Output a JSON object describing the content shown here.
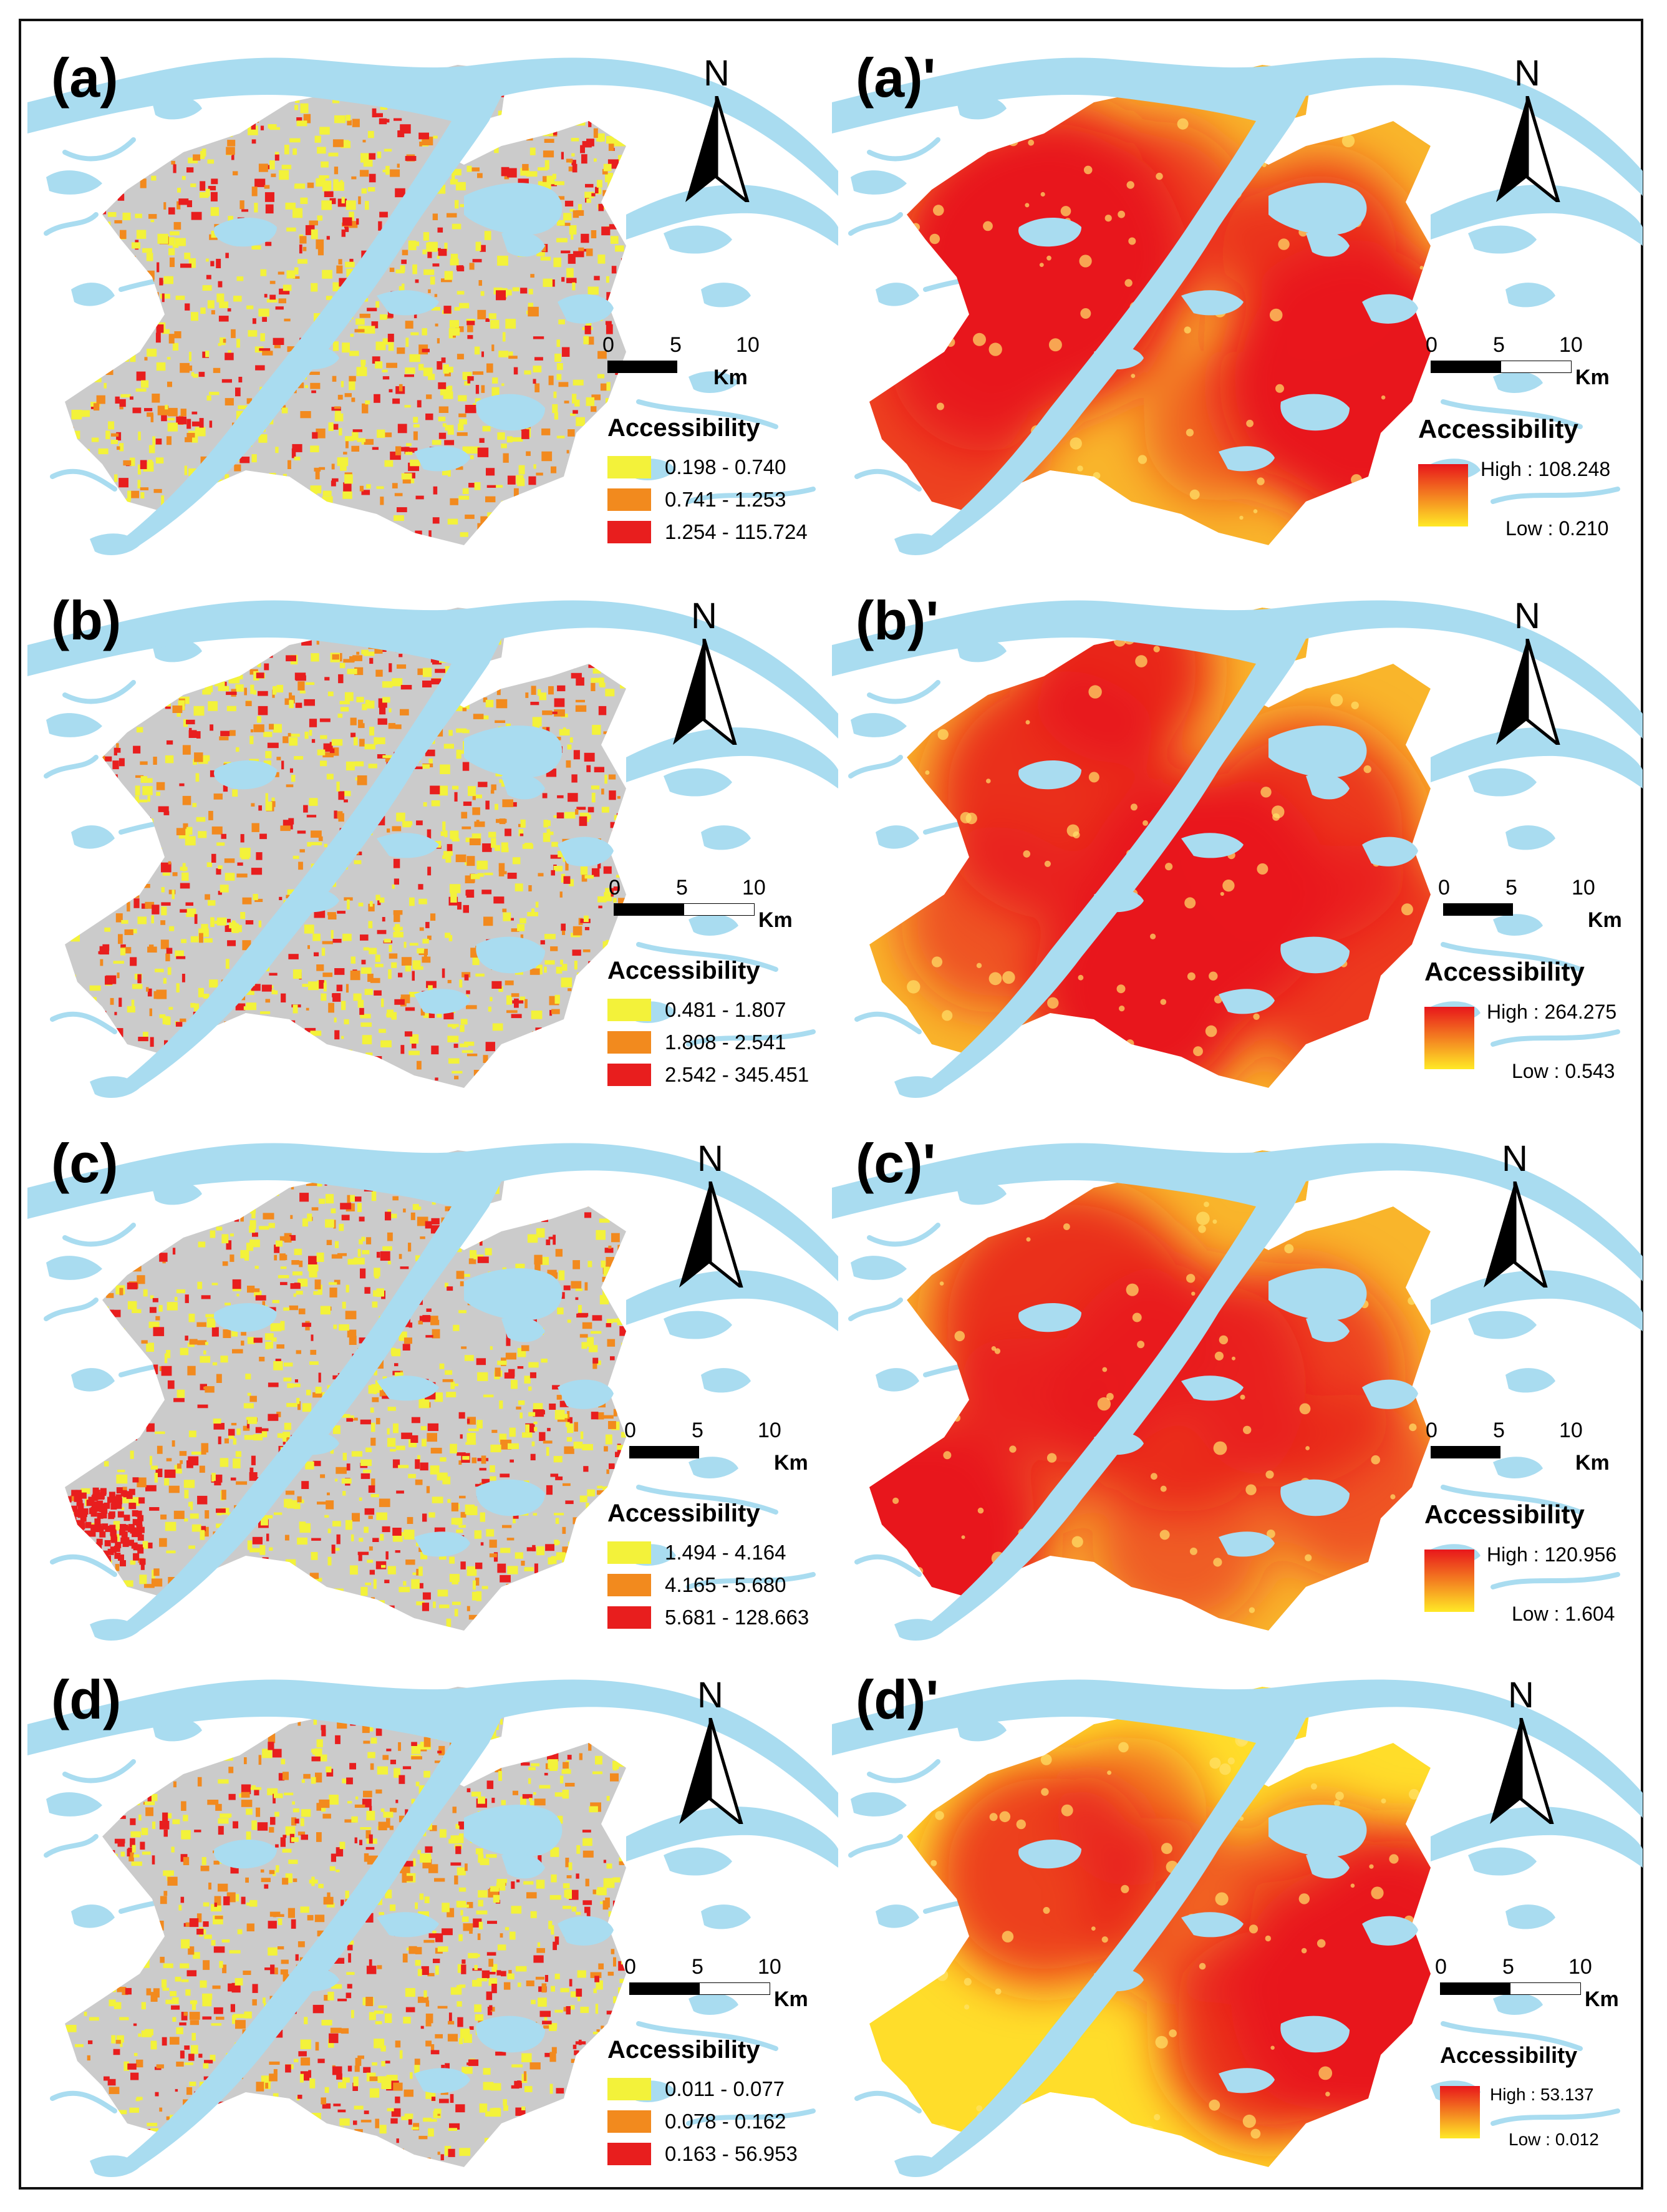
{
  "colors": {
    "water": "#a9dcf0",
    "district": "#cbcbcb",
    "yellow": "#f3f23a",
    "orange": "#f28a1e",
    "red": "#e81e1e",
    "gradient_low": "#ffe926",
    "gradient_high": "#e8161b"
  },
  "north_letter": "N",
  "scale": {
    "ticks": [
      "0",
      "5",
      "10"
    ],
    "unit": "Km"
  },
  "panels": [
    {
      "label": "(a)",
      "type": "classified",
      "legend_title": "Accessibility",
      "classes": [
        {
          "range": "0.198 - 0.740",
          "color": "yellow"
        },
        {
          "range": "0.741 - 1.253",
          "color": "orange"
        },
        {
          "range": "1.254 - 115.724",
          "color": "red"
        }
      ]
    },
    {
      "label": "(a)'",
      "type": "gradient",
      "legend_title": "Accessibility",
      "high": "High : 108.248",
      "low": "Low : 0.210"
    },
    {
      "label": "(b)",
      "type": "classified",
      "legend_title": "Accessibility",
      "classes": [
        {
          "range": "0.481 - 1.807",
          "color": "yellow"
        },
        {
          "range": "1.808 - 2.541",
          "color": "orange"
        },
        {
          "range": "2.542 - 345.451",
          "color": "red"
        }
      ]
    },
    {
      "label": "(b)'",
      "type": "gradient",
      "legend_title": "Accessibility",
      "high": "High : 264.275",
      "low": "Low : 0.543"
    },
    {
      "label": "(c)",
      "type": "classified",
      "legend_title": "Accessibility",
      "classes": [
        {
          "range": "1.494 - 4.164",
          "color": "yellow"
        },
        {
          "range": "4.165 - 5.680",
          "color": "orange"
        },
        {
          "range": "5.681 - 128.663",
          "color": "red"
        }
      ]
    },
    {
      "label": "(c)'",
      "type": "gradient",
      "legend_title": "Accessibility",
      "high": "High : 120.956",
      "low": "Low : 1.604"
    },
    {
      "label": "(d)",
      "type": "classified",
      "legend_title": "Accessibility",
      "classes": [
        {
          "range": "0.011 - 0.077",
          "color": "yellow"
        },
        {
          "range": "0.078 - 0.162",
          "color": "orange"
        },
        {
          "range": "0.163 - 56.953",
          "color": "red"
        }
      ]
    },
    {
      "label": "(d)'",
      "type": "gradient",
      "legend_title": "Accessibility",
      "high": "High : 53.137",
      "low": "Low : 0.012"
    }
  ]
}
